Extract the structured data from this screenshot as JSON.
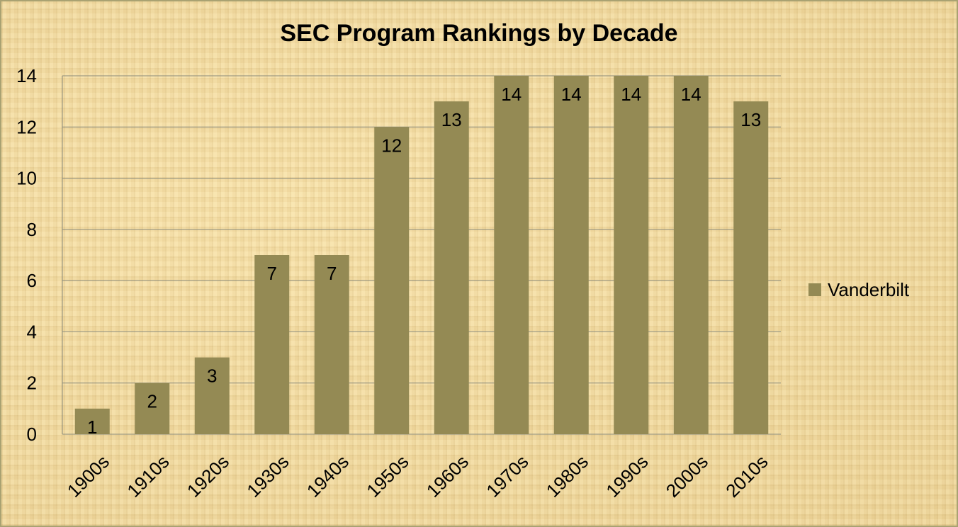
{
  "chart_data": {
    "type": "bar",
    "title": "SEC Program Rankings by Decade",
    "categories": [
      "1900s",
      "1910s",
      "1920s",
      "1930s",
      "1940s",
      "1950s",
      "1960s",
      "1970s",
      "1980s",
      "1990s",
      "2000s",
      "2010s"
    ],
    "series": [
      {
        "name": "Vanderbilt",
        "values": [
          1,
          2,
          3,
          7,
          7,
          12,
          13,
          14,
          14,
          14,
          14,
          13
        ],
        "color": "#948a54"
      }
    ],
    "yticks": [
      "0",
      "2",
      "4",
      "6",
      "8",
      "10",
      "12",
      "14"
    ],
    "ylim": [
      0,
      14
    ],
    "grid": true,
    "data_labels": true,
    "legend_position": "right"
  }
}
